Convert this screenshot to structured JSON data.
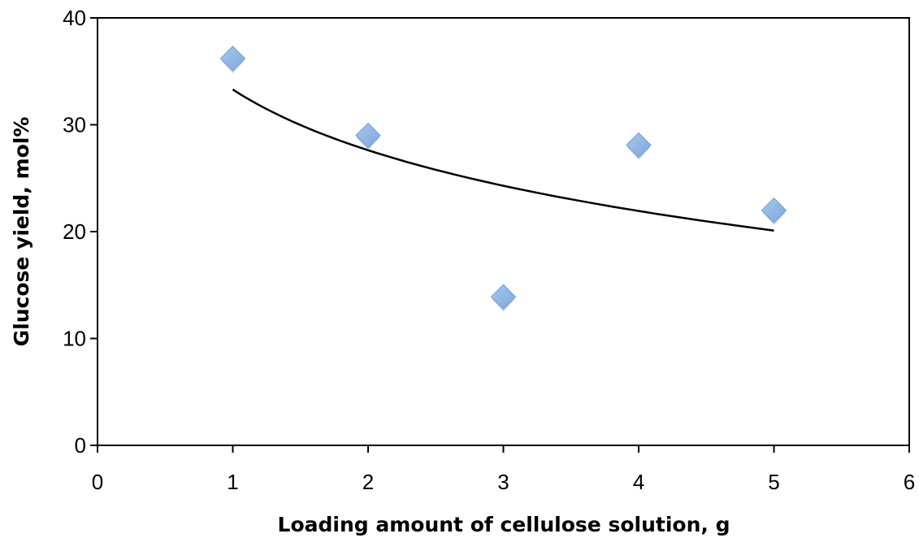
{
  "chart_data": {
    "type": "scatter",
    "title": "",
    "xlabel": "Loading amount of cellulose solution, g",
    "ylabel": "Glucose yield, mol%",
    "xlim": [
      0,
      6
    ],
    "ylim": [
      0,
      40
    ],
    "x_ticks": [
      0,
      1,
      2,
      3,
      4,
      5,
      6
    ],
    "y_ticks": [
      0,
      10,
      20,
      30,
      40
    ],
    "grid": false,
    "legend": "none",
    "series": [
      {
        "marker": "diamond",
        "color": "#7ba7dc",
        "points": [
          {
            "x": 1,
            "y": 36.2
          },
          {
            "x": 2,
            "y": 29.0
          },
          {
            "x": 3,
            "y": 13.9
          },
          {
            "x": 4,
            "y": 28.1
          },
          {
            "x": 5,
            "y": 22.0
          }
        ]
      }
    ],
    "trendline": {
      "kind": "logarithmic",
      "color": "#000000",
      "x_range": [
        1,
        5
      ],
      "a": 33.3,
      "b": -8.2
    }
  }
}
